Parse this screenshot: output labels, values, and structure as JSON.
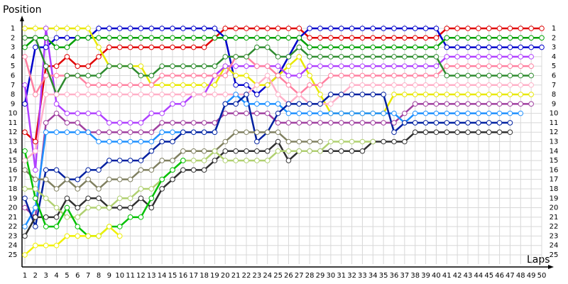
{
  "chart_data": {
    "type": "line",
    "x_label": "Laps",
    "y_label": "Position",
    "x": [
      1,
      2,
      3,
      4,
      5,
      6,
      7,
      8,
      9,
      10,
      11,
      12,
      13,
      14,
      15,
      16,
      17,
      18,
      19,
      20,
      21,
      22,
      23,
      24,
      25,
      26,
      27,
      28,
      29,
      30,
      31,
      32,
      33,
      34,
      35,
      36,
      37,
      38,
      39,
      40,
      41,
      42,
      43,
      44,
      45,
      46,
      47,
      48,
      49,
      50
    ],
    "xlim": [
      1,
      50
    ],
    "xticks": [
      1,
      2,
      3,
      4,
      5,
      6,
      7,
      8,
      9,
      10,
      11,
      12,
      13,
      14,
      15,
      16,
      17,
      18,
      19,
      20,
      21,
      22,
      23,
      24,
      25,
      26,
      27,
      28,
      29,
      30,
      31,
      32,
      33,
      34,
      35,
      36,
      37,
      38,
      39,
      40,
      41,
      42,
      43,
      44,
      45,
      46,
      47,
      48,
      49,
      50
    ],
    "ylim": [
      25,
      1
    ],
    "yticks": [
      1,
      2,
      3,
      4,
      5,
      6,
      7,
      8,
      9,
      10,
      11,
      12,
      13,
      14,
      15,
      16,
      17,
      18,
      19,
      20,
      21,
      22,
      23,
      24,
      25
    ],
    "grid": true,
    "series": [
      {
        "color": "#e00000",
        "values": [
          12,
          13,
          5,
          5,
          4,
          5,
          5,
          4,
          3,
          3,
          3,
          3,
          3,
          3,
          3,
          3,
          3,
          3,
          2,
          1,
          1,
          1,
          1,
          1,
          1,
          1,
          1,
          2,
          2,
          2,
          2,
          2,
          2,
          2,
          2,
          2,
          2,
          2,
          2,
          2,
          1,
          1,
          1,
          1,
          1,
          1,
          1,
          1,
          1,
          1
        ]
      },
      {
        "color": "#0000cc",
        "values": [
          9,
          3,
          3,
          2,
          2,
          2,
          2,
          1,
          1,
          1,
          1,
          1,
          1,
          1,
          1,
          1,
          1,
          1,
          1,
          2,
          7,
          7,
          8,
          7,
          6,
          4,
          2,
          1,
          1,
          1,
          1,
          1,
          1,
          1,
          1,
          1,
          1,
          1,
          1,
          1,
          3,
          3,
          3,
          3,
          3,
          3,
          3,
          3,
          3,
          3
        ]
      },
      {
        "color": "#00a000",
        "values": [
          3,
          2,
          2,
          3,
          3,
          2,
          2,
          2,
          2,
          2,
          2,
          2,
          2,
          2,
          2,
          2,
          2,
          2,
          2,
          2,
          2,
          2,
          2,
          2,
          2,
          2,
          2,
          3,
          3,
          3,
          3,
          3,
          3,
          3,
          3,
          3,
          3,
          3,
          3,
          3,
          2,
          2,
          2,
          2,
          2,
          2,
          2,
          2,
          2,
          2
        ]
      },
      {
        "color": "#e8e800",
        "values": [
          1,
          1,
          1,
          1,
          1,
          1,
          1,
          3,
          5,
          5,
          5,
          5,
          7,
          7,
          7,
          7,
          7,
          7,
          7,
          5,
          6,
          6,
          7,
          7,
          6,
          5,
          4,
          6,
          8,
          10,
          10,
          10,
          10,
          10,
          10,
          8,
          8,
          8,
          8,
          8,
          8,
          8,
          8,
          8,
          8,
          8,
          8,
          8,
          8,
          null
        ]
      },
      {
        "color": "#b040ff",
        "values": [
          7,
          16,
          1,
          9,
          10,
          10,
          10,
          10,
          11,
          11,
          11,
          11,
          10,
          10,
          9,
          9,
          8,
          8,
          6,
          5,
          5,
          5,
          5,
          5,
          5,
          6,
          6,
          5,
          5,
          5,
          5,
          5,
          5,
          5,
          5,
          5,
          5,
          5,
          5,
          5,
          4,
          4,
          4,
          4,
          4,
          4,
          4,
          4,
          4,
          null
        ]
      },
      {
        "color": "#ff80a0",
        "values": [
          4,
          8,
          6,
          6,
          6,
          6,
          7,
          7,
          7,
          7,
          7,
          7,
          7,
          6,
          6,
          6,
          6,
          6,
          6,
          6,
          4,
          4,
          5,
          5,
          6,
          7,
          8,
          7,
          7,
          6,
          6,
          6,
          6,
          6,
          6,
          6,
          6,
          6,
          6,
          6,
          5,
          5,
          5,
          5,
          5,
          5,
          5,
          5,
          5,
          null
        ]
      },
      {
        "color": "#2e8b2e",
        "values": [
          2,
          2,
          5,
          8,
          6,
          6,
          6,
          6,
          5,
          5,
          5,
          6,
          6,
          5,
          5,
          5,
          5,
          5,
          5,
          4,
          4,
          4,
          3,
          3,
          4,
          4,
          3,
          4,
          4,
          4,
          4,
          4,
          4,
          4,
          4,
          4,
          4,
          4,
          4,
          4,
          6,
          6,
          6,
          6,
          6,
          6,
          6,
          6,
          6,
          null
        ]
      },
      {
        "color": "#ffb0c8",
        "values": [
          15,
          14,
          8,
          8,
          8,
          8,
          8,
          8,
          8,
          8,
          8,
          8,
          8,
          8,
          8,
          8,
          8,
          8,
          8,
          8,
          8,
          8,
          7,
          6,
          8,
          9,
          8,
          9,
          9,
          9,
          8,
          7,
          7,
          7,
          7,
          7,
          7,
          7,
          7,
          7,
          7,
          7,
          7,
          7,
          7,
          7,
          7,
          7,
          7,
          null
        ]
      },
      {
        "color": "#a040a0",
        "values": [
          20,
          21,
          11,
          10,
          11,
          11,
          12,
          12,
          12,
          12,
          12,
          12,
          12,
          11,
          11,
          11,
          11,
          11,
          11,
          10,
          10,
          10,
          10,
          10,
          11,
          11,
          11,
          11,
          11,
          11,
          11,
          11,
          11,
          11,
          11,
          11,
          10,
          9,
          9,
          9,
          9,
          9,
          9,
          9,
          9,
          9,
          9,
          9,
          9,
          null
        ]
      },
      {
        "color": "#1e90ff",
        "values": [
          22,
          20,
          12,
          12,
          12,
          12,
          12,
          13,
          13,
          13,
          13,
          13,
          13,
          12,
          12,
          12,
          12,
          12,
          12,
          9,
          8,
          9,
          9,
          9,
          9,
          10,
          10,
          10,
          10,
          10,
          10,
          10,
          10,
          10,
          10,
          10,
          11,
          10,
          10,
          10,
          10,
          10,
          10,
          10,
          10,
          10,
          10,
          10,
          null,
          null
        ]
      },
      {
        "color": "#0020a0",
        "values": [
          19,
          22,
          16,
          16,
          17,
          17,
          16,
          16,
          15,
          15,
          15,
          15,
          14,
          13,
          13,
          12,
          12,
          12,
          12,
          9,
          9,
          8,
          13,
          12,
          10,
          9,
          9,
          9,
          9,
          8,
          8,
          8,
          8,
          8,
          8,
          12,
          11,
          11,
          11,
          11,
          11,
          11,
          11,
          11,
          11,
          11,
          11,
          null,
          null,
          null
        ]
      },
      {
        "color": "#303030",
        "values": [
          23,
          21,
          21,
          21,
          19,
          20,
          19,
          19,
          20,
          20,
          20,
          19,
          20,
          18,
          17,
          16,
          16,
          16,
          15,
          14,
          14,
          14,
          14,
          14,
          13,
          15,
          14,
          14,
          14,
          14,
          14,
          14,
          14,
          13,
          13,
          13,
          13,
          12,
          12,
          12,
          12,
          12,
          12,
          12,
          12,
          12,
          12,
          null,
          null,
          null
        ]
      },
      {
        "color": "#808060",
        "values": [
          16,
          17,
          17,
          18,
          17,
          18,
          17,
          18,
          17,
          17,
          17,
          16,
          16,
          15,
          15,
          14,
          14,
          14,
          14,
          13,
          12,
          12,
          12,
          12,
          12,
          13,
          13,
          13,
          13,
          null,
          null,
          null,
          null,
          null,
          null,
          null,
          null,
          null,
          null,
          null,
          null,
          null,
          null,
          null,
          null,
          null,
          null,
          null,
          null,
          null
        ]
      },
      {
        "color": "#b0d070",
        "values": [
          18,
          18,
          19,
          20,
          21,
          21,
          20,
          20,
          20,
          19,
          19,
          18,
          18,
          17,
          16,
          15,
          15,
          15,
          14,
          15,
          15,
          15,
          15,
          15,
          14,
          14,
          14,
          14,
          14,
          13,
          13,
          13,
          13,
          13,
          null,
          null,
          null,
          null,
          null,
          null,
          null,
          null,
          null,
          null,
          null,
          null,
          null,
          null,
          null,
          null
        ]
      },
      {
        "color": "#00c000",
        "values": [
          14,
          19,
          22,
          22,
          20,
          22,
          23,
          23,
          22,
          22,
          21,
          21,
          19,
          17,
          16,
          15,
          null,
          null,
          null,
          null,
          null,
          null,
          null,
          null,
          null,
          null,
          null,
          null,
          null,
          null,
          null,
          null,
          null,
          null,
          null,
          null,
          null,
          null,
          null,
          null,
          null,
          null,
          null,
          null,
          null,
          null,
          null,
          null,
          null,
          null
        ]
      },
      {
        "color": "#f0f000",
        "values": [
          25,
          24,
          24,
          24,
          23,
          23,
          23,
          23,
          22,
          23,
          null,
          null,
          null,
          null,
          null,
          null,
          null,
          null,
          null,
          null,
          null,
          null,
          null,
          null,
          null,
          null,
          null,
          null,
          null,
          null,
          null,
          null,
          null,
          null,
          null,
          null,
          null,
          null,
          null,
          null,
          null,
          null,
          null,
          null,
          null,
          null,
          null,
          null,
          null,
          null
        ]
      }
    ]
  }
}
